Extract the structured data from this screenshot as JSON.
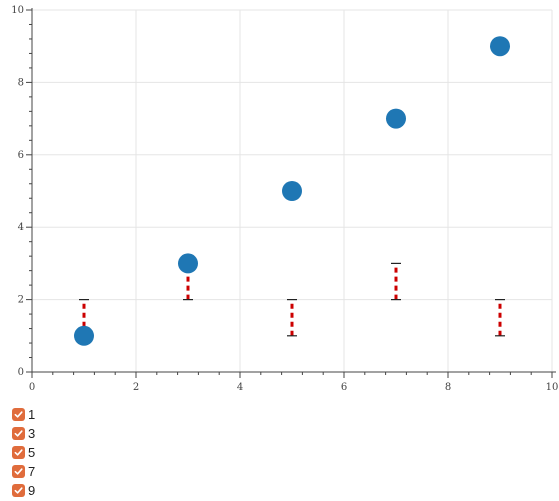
{
  "chart_data": {
    "type": "scatter",
    "title": "",
    "xlabel": "",
    "ylabel": "",
    "xlim": [
      0,
      10
    ],
    "ylim": [
      0,
      10
    ],
    "x_ticks": [
      "0",
      "2",
      "4",
      "6",
      "8",
      "10"
    ],
    "y_ticks": [
      "0",
      "2",
      "4",
      "6",
      "8",
      "10"
    ],
    "grid": true,
    "series": [
      {
        "x": [
          1,
          3,
          5,
          7,
          9
        ],
        "y": [
          1,
          3,
          5,
          7,
          9
        ],
        "color": "#1f77b4"
      }
    ],
    "error_intervals": [
      {
        "x": 1,
        "low": 1,
        "high": 2
      },
      {
        "x": 3,
        "low": 2,
        "high": 3
      },
      {
        "x": 5,
        "low": 1,
        "high": 2
      },
      {
        "x": 7,
        "low": 2,
        "high": 3
      },
      {
        "x": 9,
        "low": 1,
        "high": 2
      }
    ],
    "error_color": "#cc0000"
  },
  "checkboxes": {
    "accent": "#e06c3c",
    "items": [
      {
        "label": "1",
        "checked": true
      },
      {
        "label": "3",
        "checked": true
      },
      {
        "label": "5",
        "checked": true
      },
      {
        "label": "7",
        "checked": true
      },
      {
        "label": "9",
        "checked": true
      }
    ]
  }
}
